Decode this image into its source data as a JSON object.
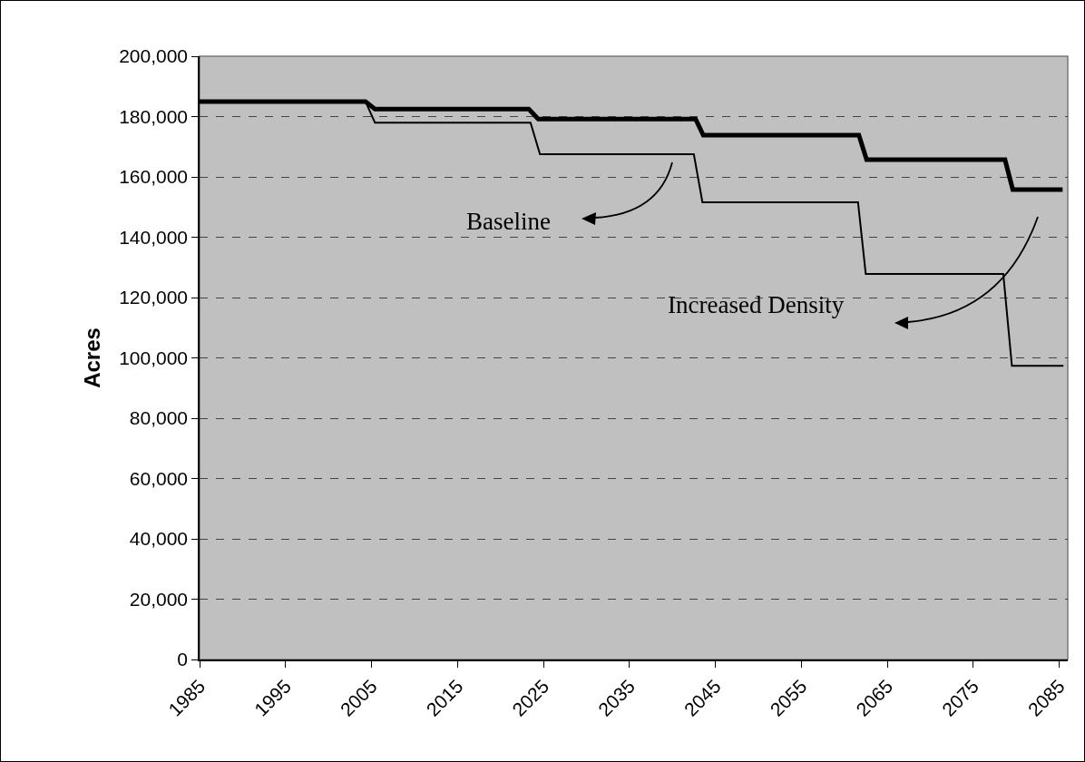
{
  "chart_data": {
    "type": "line",
    "ylabel": "Acres",
    "xlim": [
      1985,
      2086
    ],
    "xticks": [
      1985,
      1995,
      2005,
      2015,
      2025,
      2035,
      2045,
      2055,
      2065,
      2075,
      2085
    ],
    "ylim": [
      0,
      200000
    ],
    "yticks": [
      {
        "value": 0,
        "label": "0"
      },
      {
        "value": 20000,
        "label": "20,000"
      },
      {
        "value": 40000,
        "label": "40,000"
      },
      {
        "value": 60000,
        "label": "60,000"
      },
      {
        "value": 80000,
        "label": "80,000"
      },
      {
        "value": 100000,
        "label": "100,000"
      },
      {
        "value": 120000,
        "label": "120,000"
      },
      {
        "value": 140000,
        "label": "140,000"
      },
      {
        "value": 160000,
        "label": "160,000"
      },
      {
        "value": 180000,
        "label": "180,000"
      },
      {
        "value": 200000,
        "label": "200,000"
      }
    ],
    "grid": "y",
    "marker": "none",
    "line_style": "solid",
    "series": [
      {
        "color": "#000000",
        "x": [
          1985,
          2004.3,
          2005.4,
          2023.5,
          2024.6,
          2042.5,
          2043.5,
          2061.6,
          2062.5,
          2078.5,
          2079.5,
          2085.5
        ],
        "values": [
          185000,
          185000,
          178000,
          178000,
          167500,
          167500,
          151600,
          151600,
          127800,
          127800,
          97400,
          97400
        ]
      },
      {
        "color": "#000000",
        "x": [
          1985,
          2004.3,
          2005.4,
          2023.3,
          2024.4,
          2042.7,
          2043.6,
          2061.7,
          2062.6,
          2078.7,
          2079.6,
          2085.4
        ],
        "values": [
          185000,
          185000,
          182500,
          182500,
          179200,
          179200,
          173800,
          173800,
          165700,
          165700,
          155800,
          155800
        ]
      }
    ],
    "annotations": [
      "Baseline",
      "Increased Density"
    ]
  }
}
